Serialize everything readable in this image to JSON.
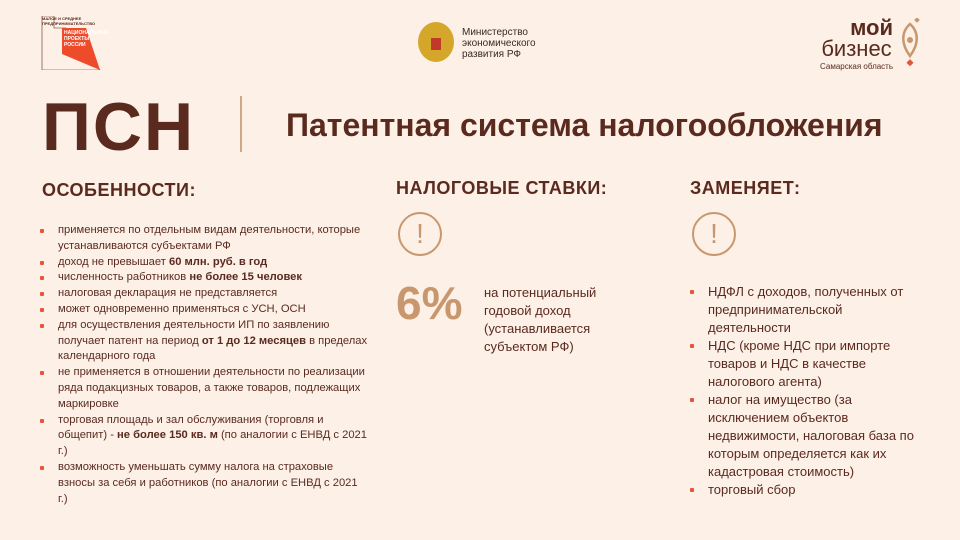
{
  "header": {
    "np_logo": {
      "small": "МАЛОЕ И СРЕДНЕЕ ПРЕДПРИНИМАТЕЛЬСТВО",
      "main": "НАЦИОНАЛЬНЫЕ ПРОЕКТЫ РОССИИ",
      "color": "#ee4b2b"
    },
    "ministry": [
      "Министерство",
      "экономического",
      "развития РФ"
    ],
    "moy_biznes": {
      "line1": "мой",
      "line2": "бизнес",
      "region": "Самарская область"
    }
  },
  "abbr": "ПСН",
  "title": "Патентная система налогообложения",
  "features": {
    "heading": "ОСОБЕННОСТИ:",
    "items": [
      [
        "применяется по отдельным видам деятельности, которые устанавливаются субъектами РФ"
      ],
      [
        "доход не превышает ",
        "60 млн. руб. в год"
      ],
      [
        "численность работников ",
        "не более 15 человек"
      ],
      [
        "налоговая декларация не представляется"
      ],
      [
        "может одновременно применяться с УСН, ОСН"
      ],
      [
        "для осуществления деятельности ИП по заявлению получает патент на период ",
        "от 1 до 12 месяцев",
        " в пределах календарного года"
      ],
      [
        "не применяется в отношении деятельности по реализации ряда подакцизных товаров, а также товаров, подлежащих маркировке"
      ],
      [
        "торговая площадь и зал обслуживания (торговля и общепит) - ",
        "не более 150 кв. м",
        " (по аналогии с ЕНВД с 2021 г.)"
      ],
      [
        "возможность уменьшать сумму налога на страховые взносы за себя и работников (по аналогии с ЕНВД с 2021 г.)"
      ]
    ]
  },
  "rates": {
    "heading": "НАЛОГОВЫЕ СТАВКИ:",
    "icon": "exclamation-circle-icon",
    "value": "6%",
    "description": "на потенциальный годовой доход (устанавливается субъектом РФ)"
  },
  "replaces": {
    "heading": "ЗАМЕНЯЕТ:",
    "icon": "exclamation-circle-icon",
    "items": [
      "НДФЛ с доходов, полученных от предпринимательской деятельности",
      "НДС (кроме НДС при импорте товаров и НДС в качестве налогового агента)",
      "налог на имущество (за исключением объектов недвижимости, налоговая база по которым определяется как их кадастровая стоимость)",
      "торговый сбор"
    ]
  },
  "colors": {
    "background": "#fcf0e7",
    "brown": "#5b2a1f",
    "accent": "#c9976e",
    "bullet": "#e6553a"
  }
}
